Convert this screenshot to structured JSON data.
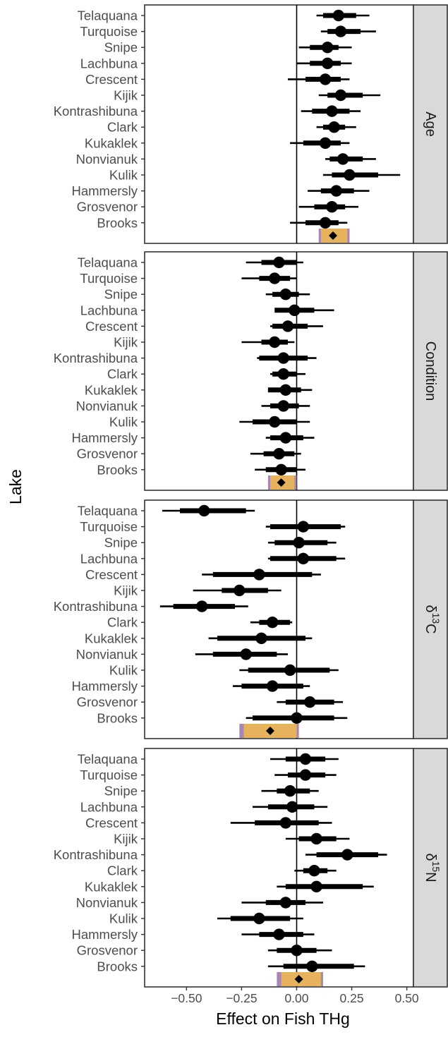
{
  "chart_data": {
    "type": "forest",
    "xlabel": "Effect on Fish THg",
    "ylabel": "Lake",
    "xlim": [
      -0.69,
      0.53
    ],
    "x_ticks": [
      -0.5,
      -0.25,
      0.0,
      0.25,
      0.5
    ],
    "x_tick_labels": [
      "−0.50",
      "−0.25",
      "0.00",
      "0.25",
      "0.50"
    ],
    "reference_line": 0,
    "grid": false,
    "lakes": [
      "Telaquana",
      "Turquoise",
      "Snipe",
      "Lachbuna",
      "Crescent",
      "Kijik",
      "Kontrashibuna",
      "Clark",
      "Kukaklek",
      "Nonvianuk",
      "Kulik",
      "Hammersly",
      "Grosvenor",
      "Brooks"
    ],
    "colors": {
      "points": "#000000",
      "overall_inner": "#e6b35c",
      "overall_outer": "#a987b5",
      "strip_background": "#d9d9d9",
      "zero_line": "#000000"
    },
    "panels": [
      {
        "label": "Age",
        "estimates": [
          0.19,
          0.2,
          0.14,
          0.14,
          0.13,
          0.2,
          0.16,
          0.17,
          0.13,
          0.21,
          0.24,
          0.18,
          0.16,
          0.13
        ],
        "inner": [
          [
            0.12,
            0.27
          ],
          [
            0.14,
            0.29
          ],
          [
            0.06,
            0.19
          ],
          [
            0.06,
            0.2
          ],
          [
            0.04,
            0.2
          ],
          [
            0.14,
            0.3
          ],
          [
            0.07,
            0.24
          ],
          [
            0.12,
            0.22
          ],
          [
            0.03,
            0.2
          ],
          [
            0.15,
            0.3
          ],
          [
            0.16,
            0.37
          ],
          [
            0.11,
            0.26
          ],
          [
            0.08,
            0.22
          ],
          [
            0.04,
            0.19
          ]
        ],
        "outer": [
          [
            0.09,
            0.33
          ],
          [
            0.11,
            0.36
          ],
          [
            0.01,
            0.25
          ],
          [
            0.0,
            0.25
          ],
          [
            -0.04,
            0.24
          ],
          [
            0.1,
            0.38
          ],
          [
            0.02,
            0.29
          ],
          [
            0.09,
            0.27
          ],
          [
            -0.03,
            0.24
          ],
          [
            0.13,
            0.36
          ],
          [
            0.12,
            0.47
          ],
          [
            0.05,
            0.33
          ],
          [
            0.01,
            0.28
          ],
          [
            -0.03,
            0.23
          ]
        ],
        "overall": {
          "estimate": 0.165,
          "inner": [
            0.11,
            0.23
          ],
          "outer": [
            0.1,
            0.24
          ]
        }
      },
      {
        "label": "Condition",
        "estimates": [
          -0.08,
          -0.1,
          -0.05,
          -0.01,
          -0.04,
          -0.1,
          -0.06,
          -0.06,
          -0.05,
          -0.06,
          -0.1,
          -0.05,
          -0.08,
          -0.07
        ],
        "inner": [
          [
            -0.16,
            0.0
          ],
          [
            -0.17,
            -0.03
          ],
          [
            -0.11,
            0.01
          ],
          [
            -0.1,
            0.08
          ],
          [
            -0.11,
            0.05
          ],
          [
            -0.16,
            -0.04
          ],
          [
            -0.17,
            0.05
          ],
          [
            -0.11,
            0.0
          ],
          [
            -0.13,
            0.02
          ],
          [
            -0.12,
            0.01
          ],
          [
            -0.2,
            0.0
          ],
          [
            -0.12,
            0.03
          ],
          [
            -0.15,
            -0.01
          ],
          [
            -0.14,
            0.0
          ]
        ],
        "outer": [
          [
            -0.23,
            0.03
          ],
          [
            -0.25,
            0.0
          ],
          [
            -0.14,
            0.06
          ],
          [
            -0.08,
            0.17
          ],
          [
            -0.12,
            0.12
          ],
          [
            -0.25,
            -0.01
          ],
          [
            -0.18,
            0.09
          ],
          [
            -0.12,
            0.04
          ],
          [
            -0.13,
            0.07
          ],
          [
            -0.16,
            0.06
          ],
          [
            -0.26,
            0.06
          ],
          [
            -0.14,
            0.08
          ],
          [
            -0.21,
            0.02
          ],
          [
            -0.19,
            0.04
          ]
        ],
        "overall": {
          "estimate": -0.07,
          "inner": [
            -0.12,
            -0.01
          ],
          "outer": [
            -0.13,
            0.0
          ]
        }
      },
      {
        "label": "δ13C",
        "estimates": [
          -0.42,
          0.03,
          0.01,
          0.03,
          -0.17,
          -0.26,
          -0.43,
          -0.11,
          -0.16,
          -0.23,
          -0.03,
          -0.11,
          0.06,
          0.0
        ],
        "inner": [
          [
            -0.53,
            -0.23
          ],
          [
            -0.12,
            0.2
          ],
          [
            -0.1,
            0.14
          ],
          [
            -0.12,
            0.18
          ],
          [
            -0.38,
            0.07
          ],
          [
            -0.34,
            -0.13
          ],
          [
            -0.56,
            -0.28
          ],
          [
            -0.17,
            -0.03
          ],
          [
            -0.36,
            0.04
          ],
          [
            -0.38,
            -0.09
          ],
          [
            -0.22,
            0.15
          ],
          [
            -0.25,
            0.03
          ],
          [
            -0.05,
            0.17
          ],
          [
            -0.2,
            0.17
          ]
        ],
        "outer": [
          [
            -0.61,
            -0.19
          ],
          [
            -0.14,
            0.22
          ],
          [
            -0.13,
            0.18
          ],
          [
            -0.13,
            0.22
          ],
          [
            -0.43,
            0.11
          ],
          [
            -0.47,
            -0.07
          ],
          [
            -0.62,
            -0.22
          ],
          [
            -0.21,
            -0.02
          ],
          [
            -0.4,
            0.07
          ],
          [
            -0.46,
            -0.04
          ],
          [
            -0.26,
            0.19
          ],
          [
            -0.29,
            0.06
          ],
          [
            -0.09,
            0.21
          ],
          [
            -0.23,
            0.23
          ]
        ],
        "overall": {
          "estimate": -0.12,
          "inner": [
            -0.24,
            0.0
          ],
          "outer": [
            -0.26,
            0.01
          ]
        }
      },
      {
        "label": "δ15N",
        "estimates": [
          0.04,
          0.04,
          -0.03,
          -0.02,
          -0.05,
          0.09,
          0.23,
          0.08,
          0.09,
          -0.05,
          -0.17,
          -0.08,
          0.0,
          0.07
        ],
        "inner": [
          [
            -0.05,
            0.13
          ],
          [
            -0.04,
            0.13
          ],
          [
            -0.09,
            0.06
          ],
          [
            -0.13,
            0.08
          ],
          [
            -0.19,
            0.1
          ],
          [
            0.01,
            0.18
          ],
          [
            0.09,
            0.37
          ],
          [
            0.03,
            0.14
          ],
          [
            -0.05,
            0.3
          ],
          [
            -0.14,
            0.04
          ],
          [
            -0.3,
            -0.03
          ],
          [
            -0.17,
            0.03
          ],
          [
            -0.09,
            0.09
          ],
          [
            -0.06,
            0.26
          ]
        ],
        "outer": [
          [
            -0.12,
            0.19
          ],
          [
            -0.1,
            0.18
          ],
          [
            -0.16,
            0.1
          ],
          [
            -0.2,
            0.14
          ],
          [
            -0.3,
            0.16
          ],
          [
            -0.05,
            0.24
          ],
          [
            0.04,
            0.41
          ],
          [
            -0.01,
            0.18
          ],
          [
            -0.09,
            0.35
          ],
          [
            -0.25,
            0.12
          ],
          [
            -0.36,
            0.03
          ],
          [
            -0.25,
            0.08
          ],
          [
            -0.13,
            0.16
          ],
          [
            -0.13,
            0.31
          ]
        ],
        "overall": {
          "estimate": 0.01,
          "inner": [
            -0.07,
            0.11
          ],
          "outer": [
            -0.09,
            0.12
          ]
        }
      }
    ]
  }
}
